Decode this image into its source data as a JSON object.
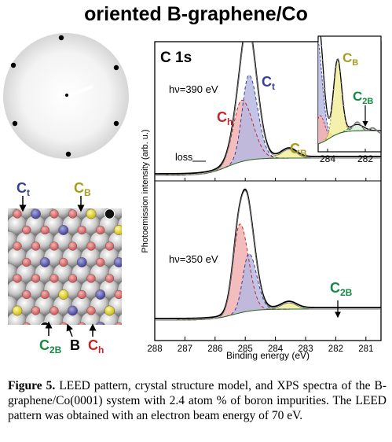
{
  "title": "oriented B-graphene/Co",
  "structure_labels": {
    "ct": "C",
    "ct_sub": "t",
    "cb": "C",
    "cb_sub": "B",
    "c2b": "C",
    "c2b_sub": "2B",
    "b": "B",
    "ch": "C",
    "ch_sub": "h"
  },
  "spectra": {
    "panel_label": "C 1s",
    "top_energy": "hν=390 eV",
    "bottom_energy": "hν=350 eV",
    "loss_label": "loss",
    "peak_labels": {
      "ct": "C",
      "ct_sub": "t",
      "ch": "C",
      "ch_sub": "h",
      "cb": "C",
      "cb_sub": "B",
      "c2b": "C",
      "c2b_sub": "2B"
    },
    "inset_labels": {
      "cb": "C",
      "cb_sub": "B",
      "c2b": "C",
      "c2b_sub": "2B",
      "ticks": [
        "284",
        "282"
      ]
    },
    "xlabel": "Binding energy (eV)",
    "ylabel": "Photoemission intensity (arb. u.)",
    "x_ticks": [
      "288",
      "287",
      "286",
      "285",
      "284",
      "283",
      "282",
      "281"
    ]
  },
  "colors": {
    "ct": "#3a3f96",
    "cb": "#a79c1e",
    "ch": "#c0262c",
    "c2b": "#158a43",
    "fill_ct": "#b7b8e0",
    "fill_ch": "#f2b2b2",
    "fill_cb": "#f3ef9e"
  },
  "caption": {
    "label": "Figure 5.",
    "text": " LEED pattern, crystal structure model, and XPS spectra of the B-graphene/Co(0001) system with 2.4 atom % of boron impurities. The LEED pattern was obtained with an electron beam energy of 70 eV."
  }
}
